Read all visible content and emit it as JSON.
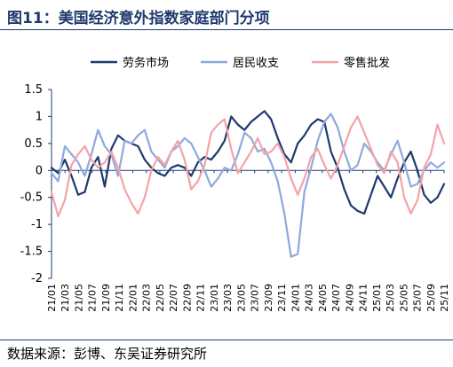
{
  "header": {
    "title": "图11：美国经济意外指数家庭部门分项"
  },
  "footer": {
    "source": "数据来源：彭博、东吴证券研究所"
  },
  "colors": {
    "series1": "#1f3a6e",
    "series2": "#8ea9db",
    "series3": "#f4a3a8",
    "frame": "#1f3a6e"
  },
  "chart_data": {
    "type": "line",
    "title": "",
    "xlabel": "",
    "ylabel": "",
    "ylim": [
      -2,
      1.5
    ],
    "yticks": [
      1.5,
      1,
      0.5,
      0,
      -0.5,
      -1,
      -1.5,
      -2
    ],
    "ytick_labels": [
      "1.5",
      "1",
      "0.5",
      "0",
      "-0.5",
      "-1",
      "-1.5",
      "-2"
    ],
    "x_labels": [
      "21/01",
      "21/03",
      "21/05",
      "21/07",
      "21/09",
      "21/11",
      "22/01",
      "22/03",
      "22/05",
      "22/07",
      "22/09",
      "22/11",
      "23/01",
      "23/03",
      "23/05",
      "23/07",
      "23/09",
      "23/11",
      "24/01",
      "24/03",
      "24/05",
      "24/07",
      "24/09",
      "24/11",
      "25/01",
      "25/03",
      "25/05",
      "25/07",
      "25/09",
      "25/11"
    ],
    "legend_position": "top",
    "grid": false,
    "series": [
      {
        "name": "劳务市场",
        "values": [
          0.05,
          -0.05,
          0.2,
          -0.1,
          -0.45,
          -0.4,
          0.05,
          0.25,
          -0.3,
          0.4,
          0.65,
          0.55,
          0.5,
          0.45,
          0.2,
          0.05,
          -0.05,
          -0.1,
          0.05,
          0.1,
          0.05,
          -0.1,
          0.15,
          0.25,
          0.2,
          0.35,
          0.55,
          1.0,
          0.85,
          0.75,
          0.9,
          1.0,
          1.1,
          0.95,
          0.6,
          0.3,
          0.15,
          0.5,
          0.65,
          0.85,
          0.95,
          0.9,
          0.35,
          0.05,
          -0.35,
          -0.65,
          -0.75,
          -0.8,
          -0.45,
          -0.1,
          -0.3,
          -0.5,
          -0.15,
          0.15,
          0.35,
          0.0,
          -0.45,
          -0.6,
          -0.5,
          -0.25
        ]
      },
      {
        "name": "居民收支",
        "values": [
          -0.05,
          -0.2,
          0.45,
          0.3,
          0.15,
          -0.1,
          0.3,
          0.75,
          0.45,
          0.3,
          -0.1,
          0.55,
          0.5,
          0.65,
          0.75,
          0.35,
          0.2,
          0.05,
          0.35,
          0.45,
          0.6,
          0.5,
          0.25,
          0.0,
          -0.3,
          -0.15,
          0.05,
          0.0,
          0.3,
          0.7,
          0.6,
          0.35,
          0.4,
          0.15,
          -0.2,
          -0.8,
          -1.6,
          -1.55,
          -0.4,
          0.05,
          0.55,
          0.9,
          1.05,
          0.8,
          0.35,
          0.0,
          0.1,
          0.5,
          0.35,
          0.15,
          0.0,
          0.3,
          0.55,
          0.15,
          -0.3,
          -0.25,
          0.0,
          0.15,
          0.05,
          0.15
        ]
      },
      {
        "name": "零售批发",
        "values": [
          -0.4,
          -0.85,
          -0.55,
          0.1,
          0.3,
          0.45,
          0.2,
          0.05,
          0.15,
          0.35,
          0.05,
          -0.35,
          -0.6,
          -0.8,
          -0.5,
          0.0,
          0.25,
          0.1,
          0.35,
          0.55,
          0.2,
          -0.35,
          -0.2,
          0.1,
          0.7,
          0.85,
          0.95,
          0.4,
          -0.05,
          0.15,
          0.35,
          0.6,
          0.3,
          0.35,
          0.5,
          0.25,
          -0.15,
          -0.45,
          -0.15,
          0.25,
          0.4,
          0.1,
          -0.15,
          0.1,
          0.45,
          0.8,
          1.0,
          0.7,
          0.4,
          0.1,
          -0.05,
          0.35,
          0.15,
          -0.5,
          -0.8,
          -0.55,
          0.05,
          0.3,
          0.85,
          0.5
        ]
      }
    ]
  }
}
